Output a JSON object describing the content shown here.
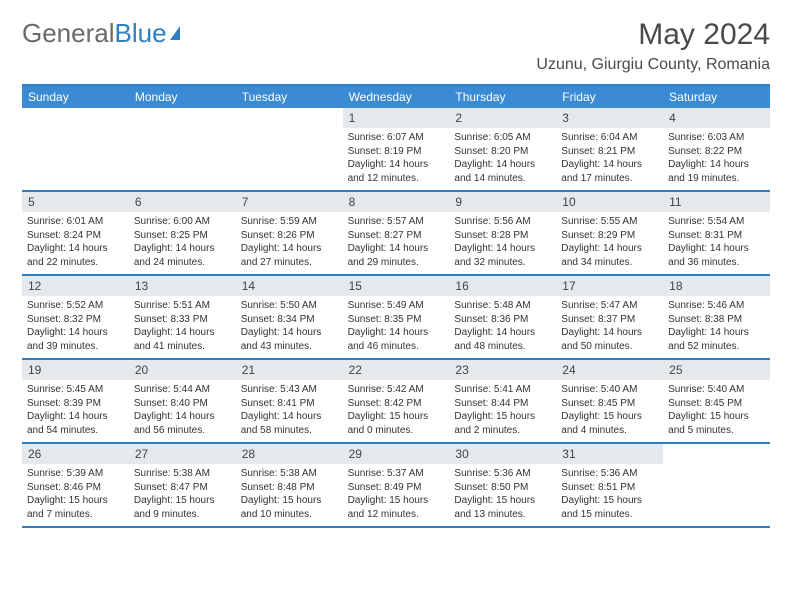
{
  "brand": {
    "part1": "General",
    "part2": "Blue"
  },
  "title": "May 2024",
  "location": "Uzunu, Giurgiu County, Romania",
  "colors": {
    "header_bar": "#3b8bd4",
    "rule": "#2f7fc2",
    "daynum_bg": "#e6e9ec",
    "text": "#333333"
  },
  "dow": [
    "Sunday",
    "Monday",
    "Tuesday",
    "Wednesday",
    "Thursday",
    "Friday",
    "Saturday"
  ],
  "weeks": [
    [
      null,
      null,
      null,
      {
        "n": "1",
        "sr": "6:07 AM",
        "ss": "8:19 PM",
        "dh": "14",
        "dm": "12"
      },
      {
        "n": "2",
        "sr": "6:05 AM",
        "ss": "8:20 PM",
        "dh": "14",
        "dm": "14"
      },
      {
        "n": "3",
        "sr": "6:04 AM",
        "ss": "8:21 PM",
        "dh": "14",
        "dm": "17"
      },
      {
        "n": "4",
        "sr": "6:03 AM",
        "ss": "8:22 PM",
        "dh": "14",
        "dm": "19"
      }
    ],
    [
      {
        "n": "5",
        "sr": "6:01 AM",
        "ss": "8:24 PM",
        "dh": "14",
        "dm": "22"
      },
      {
        "n": "6",
        "sr": "6:00 AM",
        "ss": "8:25 PM",
        "dh": "14",
        "dm": "24"
      },
      {
        "n": "7",
        "sr": "5:59 AM",
        "ss": "8:26 PM",
        "dh": "14",
        "dm": "27"
      },
      {
        "n": "8",
        "sr": "5:57 AM",
        "ss": "8:27 PM",
        "dh": "14",
        "dm": "29"
      },
      {
        "n": "9",
        "sr": "5:56 AM",
        "ss": "8:28 PM",
        "dh": "14",
        "dm": "32"
      },
      {
        "n": "10",
        "sr": "5:55 AM",
        "ss": "8:29 PM",
        "dh": "14",
        "dm": "34"
      },
      {
        "n": "11",
        "sr": "5:54 AM",
        "ss": "8:31 PM",
        "dh": "14",
        "dm": "36"
      }
    ],
    [
      {
        "n": "12",
        "sr": "5:52 AM",
        "ss": "8:32 PM",
        "dh": "14",
        "dm": "39"
      },
      {
        "n": "13",
        "sr": "5:51 AM",
        "ss": "8:33 PM",
        "dh": "14",
        "dm": "41"
      },
      {
        "n": "14",
        "sr": "5:50 AM",
        "ss": "8:34 PM",
        "dh": "14",
        "dm": "43"
      },
      {
        "n": "15",
        "sr": "5:49 AM",
        "ss": "8:35 PM",
        "dh": "14",
        "dm": "46"
      },
      {
        "n": "16",
        "sr": "5:48 AM",
        "ss": "8:36 PM",
        "dh": "14",
        "dm": "48"
      },
      {
        "n": "17",
        "sr": "5:47 AM",
        "ss": "8:37 PM",
        "dh": "14",
        "dm": "50"
      },
      {
        "n": "18",
        "sr": "5:46 AM",
        "ss": "8:38 PM",
        "dh": "14",
        "dm": "52"
      }
    ],
    [
      {
        "n": "19",
        "sr": "5:45 AM",
        "ss": "8:39 PM",
        "dh": "14",
        "dm": "54"
      },
      {
        "n": "20",
        "sr": "5:44 AM",
        "ss": "8:40 PM",
        "dh": "14",
        "dm": "56"
      },
      {
        "n": "21",
        "sr": "5:43 AM",
        "ss": "8:41 PM",
        "dh": "14",
        "dm": "58"
      },
      {
        "n": "22",
        "sr": "5:42 AM",
        "ss": "8:42 PM",
        "dh": "15",
        "dm": "0"
      },
      {
        "n": "23",
        "sr": "5:41 AM",
        "ss": "8:44 PM",
        "dh": "15",
        "dm": "2"
      },
      {
        "n": "24",
        "sr": "5:40 AM",
        "ss": "8:45 PM",
        "dh": "15",
        "dm": "4"
      },
      {
        "n": "25",
        "sr": "5:40 AM",
        "ss": "8:45 PM",
        "dh": "15",
        "dm": "5"
      }
    ],
    [
      {
        "n": "26",
        "sr": "5:39 AM",
        "ss": "8:46 PM",
        "dh": "15",
        "dm": "7"
      },
      {
        "n": "27",
        "sr": "5:38 AM",
        "ss": "8:47 PM",
        "dh": "15",
        "dm": "9"
      },
      {
        "n": "28",
        "sr": "5:38 AM",
        "ss": "8:48 PM",
        "dh": "15",
        "dm": "10"
      },
      {
        "n": "29",
        "sr": "5:37 AM",
        "ss": "8:49 PM",
        "dh": "15",
        "dm": "12"
      },
      {
        "n": "30",
        "sr": "5:36 AM",
        "ss": "8:50 PM",
        "dh": "15",
        "dm": "13"
      },
      {
        "n": "31",
        "sr": "5:36 AM",
        "ss": "8:51 PM",
        "dh": "15",
        "dm": "15"
      },
      null
    ]
  ],
  "labels": {
    "sunrise": "Sunrise: ",
    "sunset": "Sunset: ",
    "daylight_a": "Daylight: ",
    "daylight_b": " hours and ",
    "daylight_c": " minutes."
  }
}
